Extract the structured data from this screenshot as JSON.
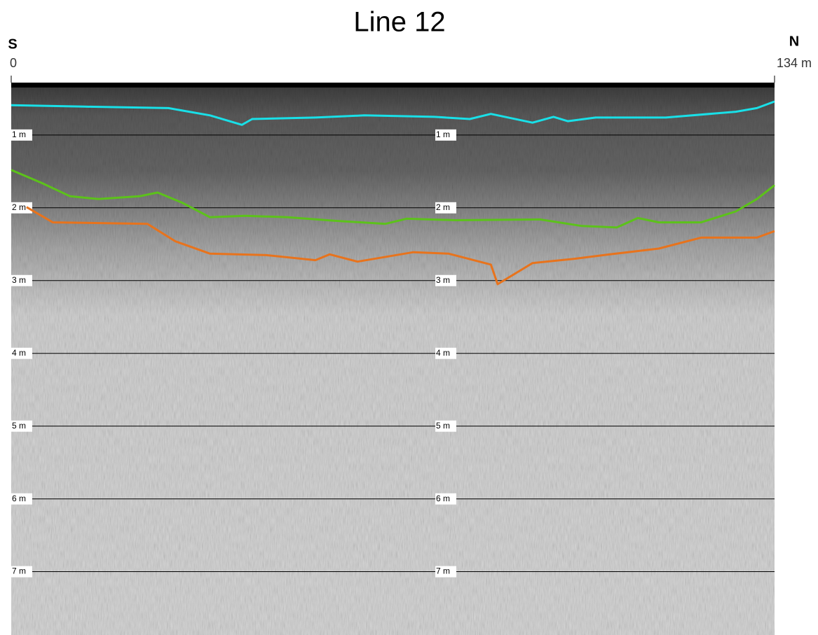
{
  "chart_data": {
    "type": "line",
    "title": "Line 12",
    "annotations": [
      "S",
      "N"
    ],
    "xlim": [
      0,
      134
    ],
    "xticks": [
      0,
      {
        "value": 134,
        "label": "134 m"
      }
    ],
    "ylim": [
      0.28,
      7.87
    ],
    "y_inverted": true,
    "yticks": [
      {
        "value": 1,
        "label": "1 m"
      },
      {
        "value": 2,
        "label": "2 m"
      },
      {
        "value": 3,
        "label": "3 m"
      },
      {
        "value": 4,
        "label": "4 m"
      },
      {
        "value": 5,
        "label": "5 m"
      },
      {
        "value": 6,
        "label": "6 m"
      },
      {
        "value": 7,
        "label": "7 m"
      }
    ],
    "grid": true,
    "series": [
      {
        "color": "#19e0e8",
        "x": [
          0,
          12.8,
          27.6,
          34.9,
          40.5,
          42.3,
          53.4,
          62.0,
          74.3,
          80.5,
          84.2,
          91.5,
          95.2,
          97.7,
          102.6,
          114.9,
          127.2,
          130.9,
          134
        ],
        "values": [
          0.59,
          0.61,
          0.63,
          0.73,
          0.86,
          0.78,
          0.76,
          0.73,
          0.75,
          0.78,
          0.71,
          0.83,
          0.75,
          0.81,
          0.76,
          0.76,
          0.68,
          0.63,
          0.54
        ]
      },
      {
        "color": "#5cc21a",
        "x": [
          0,
          5.4,
          10.3,
          15.3,
          22.6,
          25.7,
          30.0,
          34.9,
          41.1,
          48.5,
          57.1,
          65.7,
          69.4,
          78.0,
          92.8,
          100.2,
          106.3,
          110.0,
          113.7,
          121.1,
          127.2,
          130.9,
          134
        ],
        "values": [
          1.48,
          1.66,
          1.84,
          1.88,
          1.84,
          1.79,
          1.93,
          2.13,
          2.11,
          2.13,
          2.18,
          2.22,
          2.15,
          2.17,
          2.16,
          2.25,
          2.27,
          2.14,
          2.2,
          2.2,
          2.05,
          1.88,
          1.69
        ]
      },
      {
        "color": "#e8731c",
        "x": [
          2.7,
          7.3,
          23.9,
          28.8,
          34.9,
          44.8,
          53.4,
          55.9,
          60.8,
          70.6,
          76.8,
          84.2,
          85.4,
          91.5,
          98.9,
          105.1,
          113.7,
          121.1,
          127.2,
          130.9,
          134
        ],
        "values": [
          1.99,
          2.2,
          2.22,
          2.46,
          2.63,
          2.65,
          2.72,
          2.64,
          2.74,
          2.61,
          2.63,
          2.78,
          3.05,
          2.76,
          2.7,
          2.64,
          2.56,
          2.41,
          2.41,
          2.41,
          2.32
        ]
      }
    ]
  }
}
